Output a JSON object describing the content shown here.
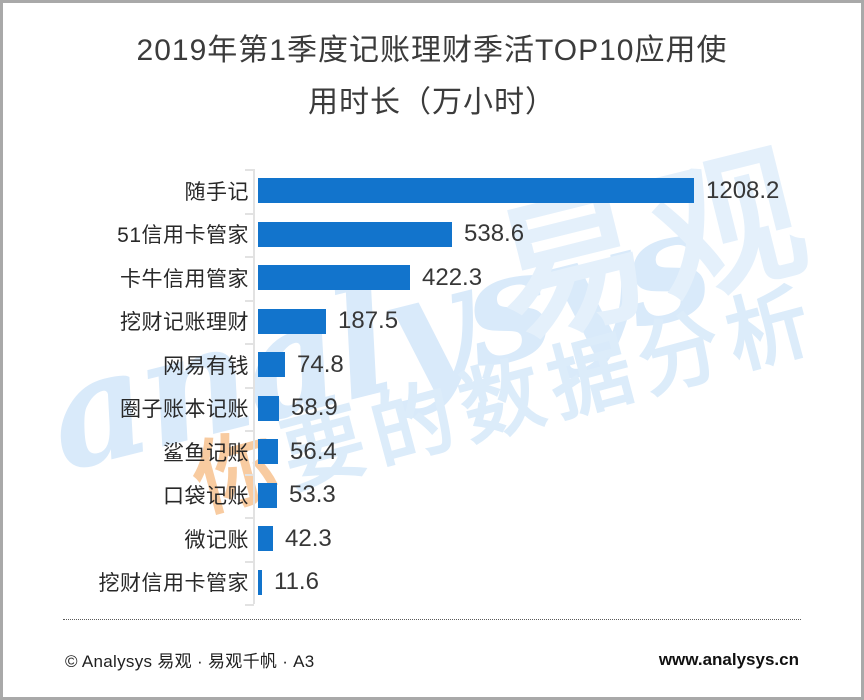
{
  "title": {
    "line1": "2019年第1季度记账理财季活TOP10应用使",
    "line2": "用时长（万小时）"
  },
  "chart_data": {
    "type": "bar",
    "orientation": "horizontal",
    "title": "2019年第1季度记账理财季活TOP10应用使用时长（万小时）",
    "unit": "万小时",
    "categories": [
      "随手记",
      "51信用卡管家",
      "卡牛信用管家",
      "挖财记账理财",
      "网易有钱",
      "圈子账本记账",
      "鲨鱼记账",
      "口袋记账",
      "微记账",
      "挖财信用卡管家"
    ],
    "values": [
      1208.2,
      538.6,
      422.3,
      187.5,
      74.8,
      58.9,
      56.4,
      53.3,
      42.3,
      11.6
    ],
    "value_labels": [
      "1208.2",
      "538.6",
      "422.3",
      "187.5",
      "74.8",
      "58.9",
      "56.4",
      "53.3",
      "42.3",
      "11.6"
    ],
    "xlim": [
      0,
      1260
    ],
    "bar_color": "#1274CC",
    "axis_color": "#E2E2E2",
    "grid": false,
    "legend": false
  },
  "watermark": {
    "script": "analysys",
    "brand": "易观",
    "slogan_first": "你",
    "slogan_rest": "要的数据分析",
    "blue": "#DCECFA",
    "orange": "#F8CBA0"
  },
  "footer": {
    "left": "© Analysys 易观 · 易观千帆 · A3",
    "right": "www.analysys.cn"
  }
}
